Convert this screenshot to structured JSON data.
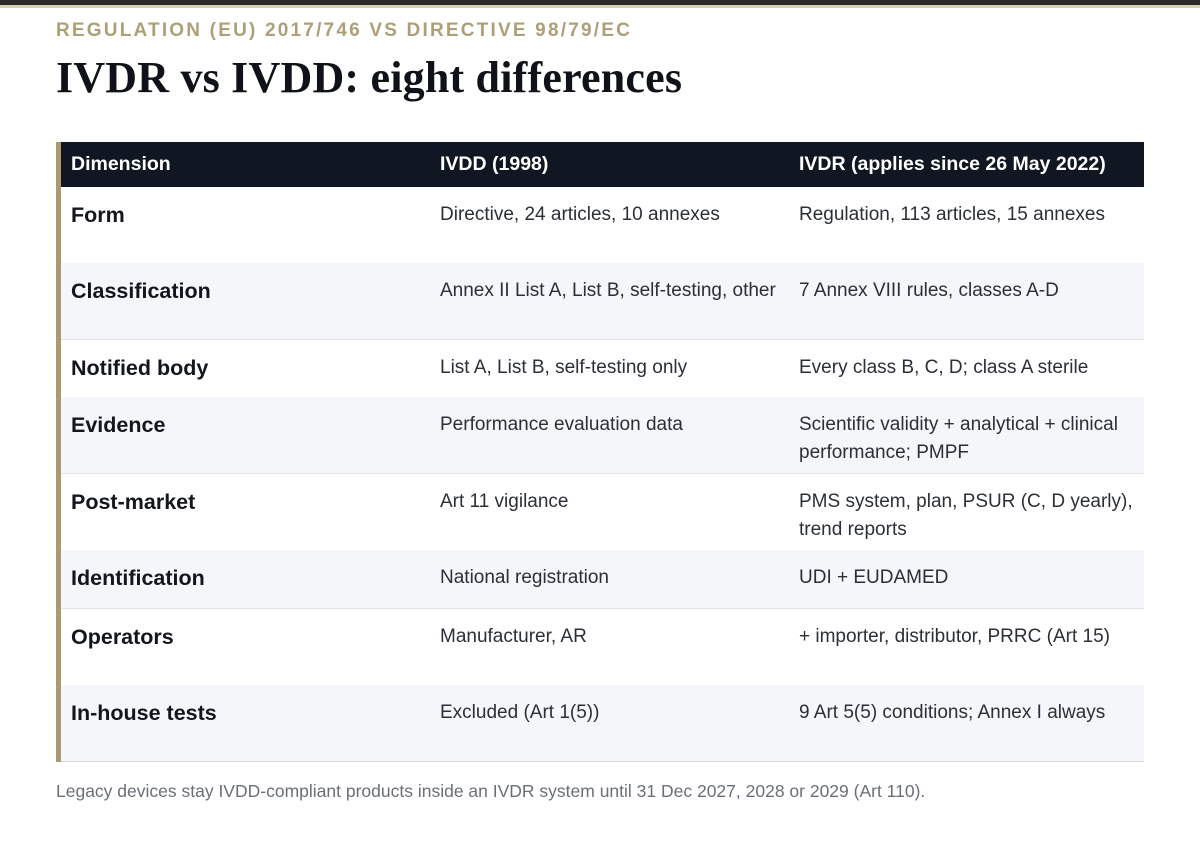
{
  "header": {
    "kicker": "REGULATION (EU) 2017/746 VS DIRECTIVE 98/79/EC",
    "title": "IVDR vs IVDD: eight differences"
  },
  "table": {
    "columns": [
      "Dimension",
      "IVDD (1998)",
      "IVDR (applies since 26 May 2022)"
    ],
    "rows": [
      {
        "dimension": "Form",
        "ivdd": "Directive, 24 articles, 10 annexes",
        "ivdr": "Regulation, 113 articles, 15 annexes"
      },
      {
        "dimension": "Classification",
        "ivdd": "Annex II List A, List B, self-testing, other",
        "ivdr": "7 Annex VIII rules, classes A-D"
      },
      {
        "dimension": "Notified body",
        "ivdd": "List A, List B, self-testing only",
        "ivdr": "Every class B, C, D; class A sterile"
      },
      {
        "dimension": "Evidence",
        "ivdd": "Performance evaluation data",
        "ivdr": "Scientific validity + analytical + clinical performance; PMPF"
      },
      {
        "dimension": "Post-market",
        "ivdd": "Art 11 vigilance",
        "ivdr": "PMS system, plan, PSUR (C, D yearly), trend reports"
      },
      {
        "dimension": "Identification",
        "ivdd": "National registration",
        "ivdr": "UDI + EUDAMED"
      },
      {
        "dimension": "Operators",
        "ivdd": "Manufacturer, AR",
        "ivdr": "+ importer, distributor, PRRC (Art 15)"
      },
      {
        "dimension": "In-house tests",
        "ivdd": "Excluded (Art 1(5))",
        "ivdr": "9 Art 5(5) conditions; Annex I always"
      }
    ]
  },
  "footnote": "Legacy devices stay IVDD-compliant products inside an IVDR system until 31 Dec 2027, 2028 or 2029 (Art 110).",
  "colors": {
    "header_bg": "#101722",
    "accent_gold": "#a89a72",
    "kicker": "#ad9f77",
    "stripe": "#f4f6f9"
  }
}
